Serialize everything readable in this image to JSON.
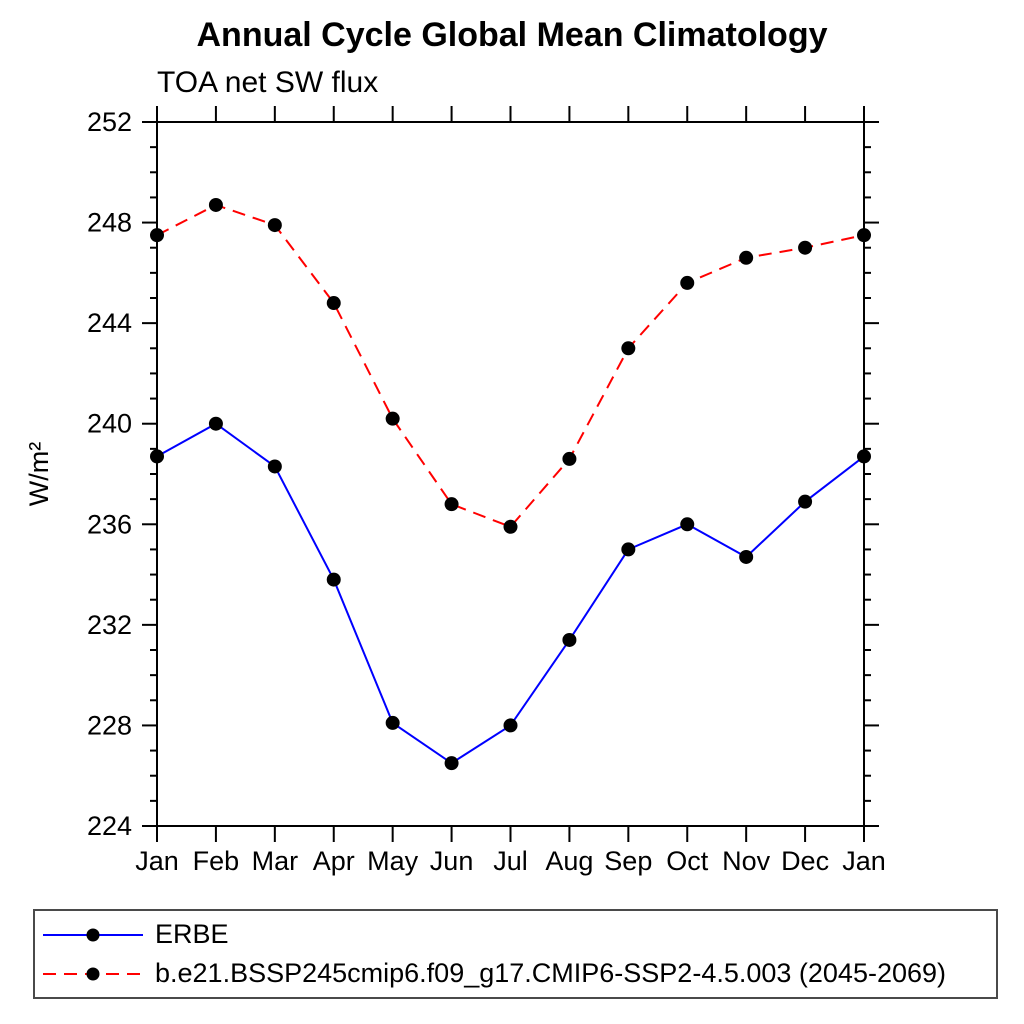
{
  "page": {
    "background_color": "#ffffff",
    "axis_color": "#000000",
    "text_color": "#000000"
  },
  "chart_data": {
    "type": "line",
    "title": "Annual Cycle Global Mean Climatology",
    "subtitle": "TOA net SW flux",
    "xlabel": "",
    "ylabel": "W/m²",
    "categories": [
      "Jan",
      "Feb",
      "Mar",
      "Apr",
      "May",
      "Jun",
      "Jul",
      "Aug",
      "Sep",
      "Oct",
      "Nov",
      "Dec",
      "Jan"
    ],
    "ylim": [
      224,
      252
    ],
    "yticks_major": [
      224,
      228,
      232,
      236,
      240,
      244,
      248,
      252
    ],
    "ytick_minor_step": 1,
    "grid": false,
    "frame": "full-box",
    "legend_position": "bottom-left-box",
    "marker": "filled-circle",
    "marker_color": "#000000",
    "series": [
      {
        "name": "ERBE",
        "color": "#0000ff",
        "line_style": "solid",
        "values": [
          238.7,
          240.0,
          238.3,
          233.8,
          228.1,
          226.5,
          228.0,
          231.4,
          235.0,
          236.0,
          234.7,
          236.9,
          238.7
        ]
      },
      {
        "name": "b.e21.BSSP245cmip6.f09_g17.CMIP6-SSP2-4.5.003 (2045-2069)",
        "color": "#ff0000",
        "line_style": "dashed",
        "values": [
          247.5,
          248.7,
          247.9,
          244.8,
          240.2,
          236.8,
          235.9,
          238.6,
          243.0,
          245.6,
          246.6,
          247.0,
          247.5
        ]
      }
    ]
  }
}
